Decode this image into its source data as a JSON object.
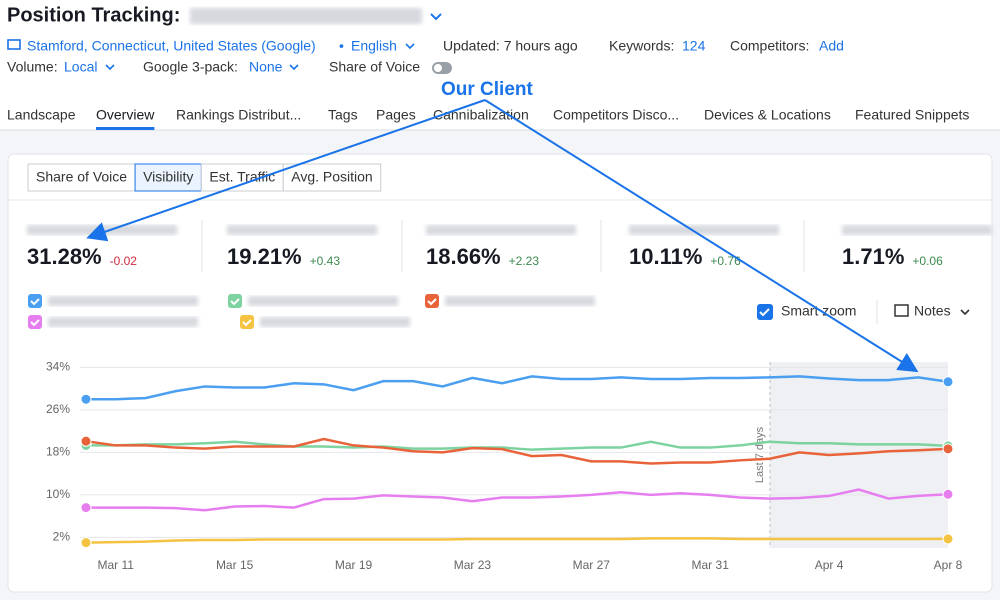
{
  "header": {
    "title": "Position Tracking:",
    "location": "Stamford, Connecticut, United States (Google)",
    "separator": "•",
    "language": "English",
    "updated": "Updated: 7 hours ago",
    "keywords_label": "Keywords:",
    "keywords": "124",
    "competitors_label": "Competitors:",
    "competitors": "Add",
    "volume_label": "Volume:",
    "volume": "Local",
    "gpack_label": "Google 3-pack:",
    "gpack": "None",
    "sov_toggle": "Share of Voice"
  },
  "tabs": {
    "items": [
      "Landscape",
      "Overview",
      "Rankings Distribut...",
      "Tags",
      "Pages",
      "Cannibalization",
      "Competitors Disco...",
      "Devices & Locations",
      "Featured Snippets"
    ],
    "active": 1
  },
  "metric_buttons": {
    "items": [
      "Share of Voice",
      "Visibility",
      "Est. Traffic",
      "Avg. Position"
    ],
    "active": 1
  },
  "summary": [
    {
      "value": "31.28%",
      "change": "-0.02"
    },
    {
      "value": "19.21%",
      "change": "+0.43"
    },
    {
      "value": "18.66%",
      "change": "+2.23"
    },
    {
      "value": "10.11%",
      "change": "+0.76"
    },
    {
      "value": "1.71%",
      "change": "+0.06"
    }
  ],
  "controls": {
    "smart_zoom": "Smart zoom",
    "notes": "Notes"
  },
  "callout": "Our Client",
  "chart_data": {
    "type": "line",
    "annotation": "Last 7 days",
    "categories": [
      null,
      "Mar 11",
      null,
      null,
      null,
      "Mar 15",
      null,
      null,
      null,
      "Mar 19",
      null,
      null,
      null,
      "Mar 23",
      null,
      null,
      null,
      "Mar 27",
      null,
      null,
      null,
      "Mar 31",
      null,
      null,
      null,
      "Apr 4",
      null,
      null,
      null,
      "Apr 8"
    ],
    "series": [
      {
        "color": "#4a9ff0",
        "values": [
          28,
          28,
          28.2,
          29.5,
          30.4,
          30.2,
          30.2,
          31,
          30.8,
          29.7,
          31.4,
          31.4,
          30.4,
          32,
          31,
          32.3,
          31.8,
          31.8,
          32.1,
          31.8,
          31.8,
          32,
          32,
          32.1,
          32.3,
          31.9,
          31.6,
          31.6,
          32.1,
          31.28
        ]
      },
      {
        "color": "#7dd3a0",
        "values": [
          19.3,
          19.3,
          19.5,
          19.5,
          19.7,
          20.0,
          19.5,
          19.1,
          19.1,
          18.9,
          19.1,
          18.7,
          18.7,
          18.9,
          18.9,
          18.5,
          18.7,
          18.9,
          18.9,
          20.0,
          18.9,
          18.9,
          19.3,
          20.0,
          19.7,
          19.7,
          19.5,
          19.5,
          19.5,
          19.21
        ]
      },
      {
        "color": "#e8633a",
        "values": [
          20.1,
          19.3,
          19.3,
          18.9,
          18.7,
          19.1,
          19.1,
          19.1,
          20.5,
          19.3,
          18.9,
          18.2,
          18,
          18.8,
          18.6,
          17.3,
          17.5,
          16.3,
          16.3,
          15.9,
          16.1,
          16.1,
          16.5,
          16.8,
          18,
          17.5,
          17.8,
          18.2,
          18.4,
          18.66
        ]
      },
      {
        "color": "#e77ef0",
        "values": [
          7.6,
          7.6,
          7.6,
          7.5,
          7.1,
          7.8,
          7.9,
          7.6,
          9.2,
          9.3,
          9.9,
          9.7,
          9.5,
          8.8,
          9.5,
          9.5,
          9.7,
          10.0,
          10.5,
          10.0,
          10.3,
          10.0,
          9.5,
          9.3,
          9.4,
          9.8,
          11.0,
          9.3,
          9.8,
          10.11
        ]
      },
      {
        "color": "#f5c342",
        "values": [
          1.0,
          1.1,
          1.2,
          1.4,
          1.5,
          1.5,
          1.6,
          1.6,
          1.6,
          1.6,
          1.6,
          1.6,
          1.6,
          1.7,
          1.7,
          1.7,
          1.7,
          1.7,
          1.7,
          1.8,
          1.8,
          1.8,
          1.7,
          1.7,
          1.7,
          1.7,
          1.7,
          1.7,
          1.7,
          1.71
        ]
      }
    ],
    "ylim": [
      0,
      35
    ],
    "yticks": [
      {
        "value": 2,
        "label": "2%"
      },
      {
        "value": 10,
        "label": "10%"
      },
      {
        "value": 18,
        "label": "18%"
      },
      {
        "value": 26,
        "label": "26%"
      },
      {
        "value": 34,
        "label": "34%"
      }
    ],
    "grid": true
  }
}
